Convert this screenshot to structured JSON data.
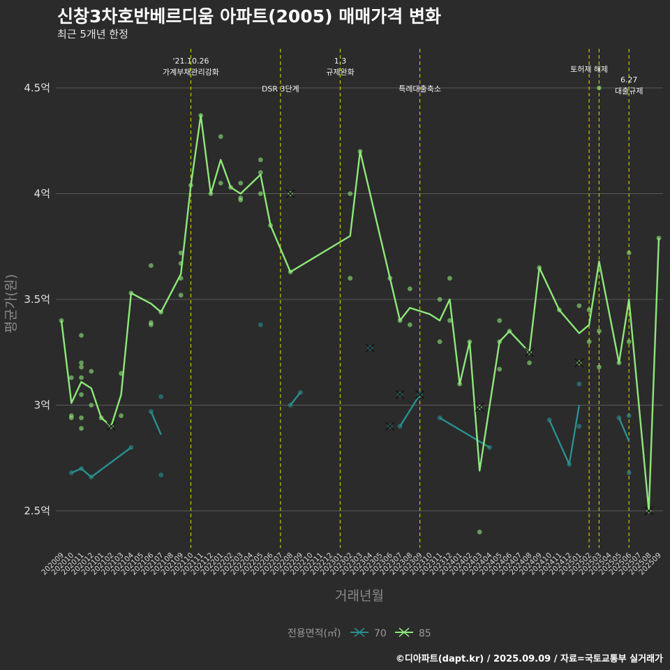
{
  "title": "신창3차호반베르디움 아파트(2005) 매매가격 변화",
  "subtitle": "최근 5개년 한정",
  "caption": "©디아파트(dapt.kr) / 2025.09.09 / 자료=국토교통부 실거래가",
  "colors": {
    "background": "#2b2b2b",
    "s70": "#2a8f8f",
    "s85": "#8ee87a",
    "vline": "#c8c800",
    "grid": "#5a5a5a"
  },
  "chart_data": {
    "type": "line",
    "title": "신창3차호반베르디움 아파트(2005) 매매가격 변화",
    "subtitle": "최근 5개년 한정",
    "xlabel": "거래년월",
    "ylabel": "평균가(원)",
    "x": [
      "202009",
      "202010",
      "202011",
      "202012",
      "202101",
      "202102",
      "202103",
      "202104",
      "202105",
      "202106",
      "202107",
      "202108",
      "202109",
      "202110",
      "202111",
      "202112",
      "202201",
      "202202",
      "202203",
      "202204",
      "202205",
      "202206",
      "202207",
      "202208",
      "202209",
      "202210",
      "202211",
      "202212",
      "202301",
      "202302",
      "202303",
      "202304",
      "202305",
      "202306",
      "202307",
      "202308",
      "202309",
      "202310",
      "202311",
      "202312",
      "202401",
      "202402",
      "202403",
      "202404",
      "202405",
      "202406",
      "202407",
      "202408",
      "202409",
      "202410",
      "202411",
      "202412",
      "202501",
      "202502",
      "202503",
      "202504",
      "202505",
      "202506",
      "202507",
      "202508",
      "202509"
    ],
    "y_ticks": [
      2.5,
      3,
      3.5,
      4,
      4.5
    ],
    "y_tick_labels": [
      "2.5억",
      "3억",
      "3.5억",
      "4억",
      "4.5억"
    ],
    "ylim": [
      2.3,
      4.7
    ],
    "grid": true,
    "legend": {
      "title": "전용면적(㎡)",
      "position": "bottom"
    },
    "series": [
      {
        "name": "70",
        "color": "#2a8f8f",
        "line_segments": [
          [
            [
              "202010",
              2.68
            ],
            [
              "202011",
              2.7
            ],
            [
              "202012",
              2.66
            ],
            [
              "202104",
              2.8
            ]
          ],
          [
            [
              "202106",
              2.97
            ],
            [
              "202107",
              2.86
            ]
          ],
          [
            [
              "202208",
              3.0
            ],
            [
              "202209",
              3.06
            ]
          ],
          [
            [
              "202307",
              2.9
            ],
            [
              "202309",
              3.05
            ]
          ],
          [
            [
              "202311",
              2.94
            ],
            [
              "202404",
              2.8
            ]
          ],
          [
            [
              "202410",
              2.93
            ],
            [
              "202412",
              2.72
            ],
            [
              "202501",
              3.0
            ]
          ],
          [
            [
              "202505",
              2.94
            ],
            [
              "202506",
              2.83
            ]
          ]
        ],
        "points": [
          [
            "202010",
            2.68
          ],
          [
            "202011",
            2.7
          ],
          [
            "202012",
            2.66
          ],
          [
            "202104",
            2.8
          ],
          [
            "202106",
            2.97
          ],
          [
            "202107",
            3.04
          ],
          [
            "202107",
            2.67
          ],
          [
            "202205",
            3.38
          ],
          [
            "202208",
            3.0
          ],
          [
            "202209",
            3.06
          ],
          [
            "202307",
            2.9
          ],
          [
            "202311",
            2.94
          ],
          [
            "202404",
            2.8
          ],
          [
            "202410",
            2.93
          ],
          [
            "202412",
            2.72
          ],
          [
            "202501",
            2.9
          ],
          [
            "202501",
            3.1
          ],
          [
            "202505",
            2.94
          ],
          [
            "202506",
            2.95
          ],
          [
            "202506",
            2.68
          ]
        ],
        "markers_x": [
          [
            "202304",
            3.27
          ],
          [
            "202306",
            2.9
          ],
          [
            "202307",
            3.05
          ],
          [
            "202309",
            3.05
          ]
        ]
      },
      {
        "name": "85",
        "color": "#8ee87a",
        "line": [
          [
            "202009",
            3.4
          ],
          [
            "202010",
            3.01
          ],
          [
            "202011",
            3.11
          ],
          [
            "202012",
            3.08
          ],
          [
            "202101",
            2.94
          ],
          [
            "202102",
            2.9
          ],
          [
            "202103",
            3.05
          ],
          [
            "202104",
            3.53
          ],
          [
            "202106",
            3.48
          ],
          [
            "202107",
            3.44
          ],
          [
            "202109",
            3.62
          ],
          [
            "202110",
            4.04
          ],
          [
            "202111",
            4.37
          ],
          [
            "202112",
            4.0
          ],
          [
            "202201",
            4.16
          ],
          [
            "202202",
            4.03
          ],
          [
            "202203",
            4.0
          ],
          [
            "202205",
            4.09
          ],
          [
            "202206",
            3.85
          ],
          [
            "202208",
            3.63
          ],
          [
            "202302",
            3.8
          ],
          [
            "202303",
            4.2
          ],
          [
            "202306",
            3.6
          ],
          [
            "202307",
            3.4
          ],
          [
            "202308",
            3.46
          ],
          [
            "202310",
            3.43
          ],
          [
            "202311",
            3.4
          ],
          [
            "202312",
            3.5
          ],
          [
            "202401",
            3.1
          ],
          [
            "202402",
            3.3
          ],
          [
            "202403",
            2.69
          ],
          [
            "202405",
            3.3
          ],
          [
            "202406",
            3.35
          ],
          [
            "202408",
            3.25
          ],
          [
            "202409",
            3.65
          ],
          [
            "202411",
            3.45
          ],
          [
            "202501",
            3.34
          ],
          [
            "202502",
            3.38
          ],
          [
            "202503",
            3.68
          ],
          [
            "202505",
            3.2
          ],
          [
            "202506",
            3.5
          ],
          [
            "202508",
            2.5
          ],
          [
            "202509",
            3.79
          ]
        ],
        "points": [
          [
            "202009",
            3.4
          ],
          [
            "202010",
            3.13
          ],
          [
            "202010",
            2.95
          ],
          [
            "202010",
            2.94
          ],
          [
            "202011",
            3.33
          ],
          [
            "202011",
            3.2
          ],
          [
            "202011",
            3.18
          ],
          [
            "202011",
            3.13
          ],
          [
            "202011",
            3.05
          ],
          [
            "202011",
            2.94
          ],
          [
            "202011",
            2.89
          ],
          [
            "202012",
            3.16
          ],
          [
            "202012",
            3.0
          ],
          [
            "202101",
            2.94
          ],
          [
            "202103",
            3.15
          ],
          [
            "202103",
            2.95
          ],
          [
            "202104",
            3.53
          ],
          [
            "202106",
            3.66
          ],
          [
            "202106",
            3.39
          ],
          [
            "202106",
            3.38
          ],
          [
            "202107",
            3.44
          ],
          [
            "202109",
            3.72
          ],
          [
            "202109",
            3.67
          ],
          [
            "202109",
            3.6
          ],
          [
            "202109",
            3.52
          ],
          [
            "202110",
            4.04
          ],
          [
            "202111",
            4.37
          ],
          [
            "202112",
            4.0
          ],
          [
            "202201",
            4.27
          ],
          [
            "202201",
            4.05
          ],
          [
            "202202",
            4.03
          ],
          [
            "202203",
            4.05
          ],
          [
            "202203",
            3.98
          ],
          [
            "202203",
            3.97
          ],
          [
            "202205",
            4.16
          ],
          [
            "202205",
            4.1
          ],
          [
            "202205",
            4.0
          ],
          [
            "202206",
            3.85
          ],
          [
            "202208",
            3.63
          ],
          [
            "202302",
            4.0
          ],
          [
            "202302",
            3.6
          ],
          [
            "202303",
            4.2
          ],
          [
            "202306",
            3.6
          ],
          [
            "202307",
            3.4
          ],
          [
            "202308",
            3.55
          ],
          [
            "202308",
            3.38
          ],
          [
            "202311",
            3.5
          ],
          [
            "202311",
            3.3
          ],
          [
            "202312",
            3.6
          ],
          [
            "202312",
            3.4
          ],
          [
            "202401",
            3.1
          ],
          [
            "202402",
            3.3
          ],
          [
            "202403",
            2.4
          ],
          [
            "202405",
            3.4
          ],
          [
            "202405",
            3.3
          ],
          [
            "202405",
            3.17
          ],
          [
            "202406",
            3.35
          ],
          [
            "202408",
            3.2
          ],
          [
            "202409",
            3.65
          ],
          [
            "202411",
            3.45
          ],
          [
            "202501",
            3.47
          ],
          [
            "202502",
            3.45
          ],
          [
            "202502",
            3.3
          ],
          [
            "202503",
            4.5
          ],
          [
            "202503",
            3.35
          ],
          [
            "202503",
            3.18
          ],
          [
            "202505",
            3.2
          ],
          [
            "202506",
            3.72
          ],
          [
            "202506",
            3.3
          ],
          [
            "202509",
            3.79
          ]
        ],
        "markers_x": [
          [
            "202102",
            2.9
          ],
          [
            "202208",
            4.0
          ],
          [
            "202403",
            2.99
          ],
          [
            "202408",
            3.25
          ],
          [
            "202501",
            3.2
          ],
          [
            "202508",
            2.5
          ]
        ]
      }
    ],
    "annotations": [
      {
        "x": "202110",
        "lines": [
          "'21.10.26",
          "가계부채관리강화"
        ],
        "row": "high"
      },
      {
        "x": "202207",
        "lines": [
          "DSR 3단계"
        ],
        "row": "low"
      },
      {
        "x": "202301",
        "lines": [
          "1.3",
          "규제완화"
        ],
        "row": "high"
      },
      {
        "x": "202309",
        "lines": [
          "특례대출축소"
        ],
        "row": "low"
      },
      {
        "x": "202502",
        "lines": [
          "토허제 해제"
        ],
        "row": "top"
      },
      {
        "x": "202503",
        "lines": [],
        "row": "none"
      },
      {
        "x": "202506",
        "lines": [
          "6.27",
          "대출규제"
        ],
        "row": "mid"
      }
    ]
  }
}
